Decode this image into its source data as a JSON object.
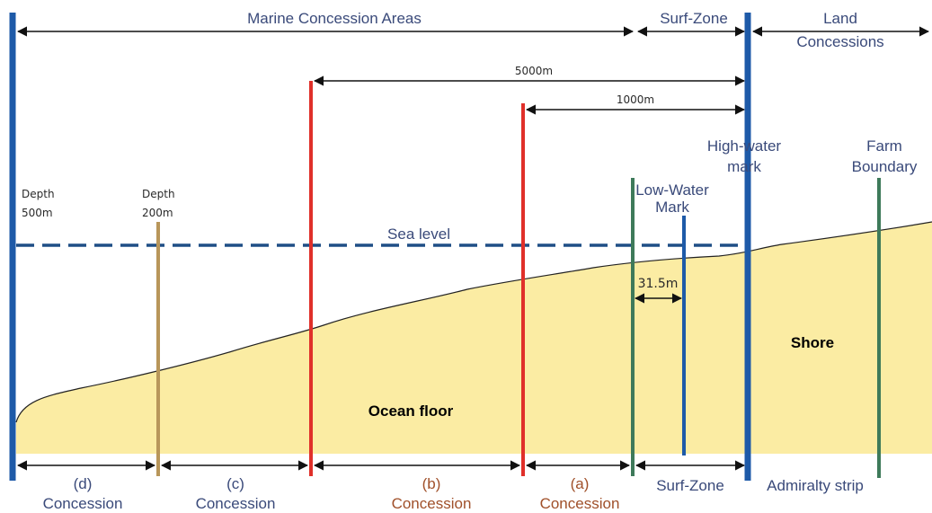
{
  "top": {
    "marine": "Marine Concession Areas",
    "surf": "Surf-Zone",
    "land_line1": "Land",
    "land_line2": "Concessions"
  },
  "distances": {
    "d5000": "5000m",
    "d1000": "1000m",
    "d315": "31.5m"
  },
  "depths": {
    "d500_line1": "Depth",
    "d500_line2": "500m",
    "d200_line1": "Depth",
    "d200_line2": "200m"
  },
  "marks": {
    "high_line1": "High-water",
    "high_line2": "mark",
    "low_line1": "Low-Water",
    "low_line2": "Mark",
    "farm_line1": "Farm",
    "farm_line2": "Boundary",
    "sea_level": "Sea level"
  },
  "regions": {
    "ocean_floor": "Ocean floor",
    "shore": "Shore"
  },
  "bottom": {
    "d_letter": "(d)",
    "c_letter": "(c)",
    "b_letter": "(b)",
    "a_letter": "(a)",
    "concession": "Concession",
    "surf": "Surf-Zone",
    "admiralty": "Admiralty strip"
  },
  "colors": {
    "blue": "#1e5aa8",
    "navy_dash": "#1f4e86",
    "red": "#e0302a",
    "tan": "#b8965a",
    "green": "#3e7a5a",
    "sand": "#fbeca3",
    "text": "#3a4a7a",
    "brown_text": "#a0502a"
  }
}
